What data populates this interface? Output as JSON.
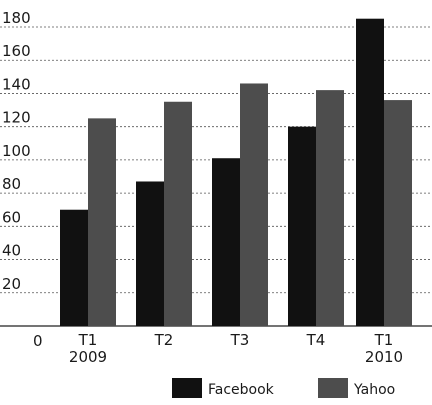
{
  "chart_data": {
    "type": "bar",
    "categories": [
      [
        "T1",
        "2009"
      ],
      [
        "T2"
      ],
      [
        "T3"
      ],
      [
        "T4"
      ],
      [
        "T1",
        "2010"
      ]
    ],
    "series": [
      {
        "name": "Facebook",
        "color": "#111111",
        "values": [
          70,
          87,
          101,
          120,
          185
        ]
      },
      {
        "name": "Yahoo",
        "color": "#4d4d4d",
        "values": [
          125,
          135,
          146,
          142,
          136
        ]
      }
    ],
    "ylim": [
      0,
      180
    ],
    "yticks": [
      0,
      20,
      40,
      60,
      80,
      100,
      120,
      140,
      160,
      180
    ],
    "grid": true,
    "legend_position": "bottom-right"
  }
}
